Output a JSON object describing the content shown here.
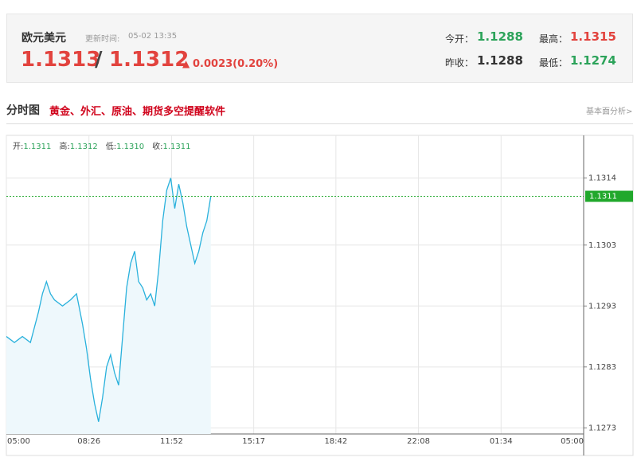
{
  "header": {
    "name": "欧元美元",
    "update_label": "更新时间:",
    "update_time": "05-02 13:35",
    "bid": "1.1313",
    "slash": "/",
    "ask": "1.1312",
    "change": "0.0023(0.20%)",
    "stats": [
      {
        "label": "今开：",
        "value": "1.1288"
      },
      {
        "label": "最高：",
        "value": "1.1315"
      },
      {
        "label": "昨收：",
        "value": "1.1288"
      },
      {
        "label": "最低：",
        "value": "1.1274"
      }
    ]
  },
  "section": {
    "title": "分时图",
    "promo": "黄金、外汇、原油、期货多空提醒软件",
    "link": "基本面分析>"
  },
  "chart_data": {
    "type": "line",
    "color": "#29b1dc",
    "area_color": "#eef8fc",
    "summary": [
      {
        "label": "开:",
        "value": "1.1311"
      },
      {
        "label": "高:",
        "value": "1.1312"
      },
      {
        "label": "低:",
        "value": "1.1310"
      },
      {
        "label": "收:",
        "value": "1.1311"
      }
    ],
    "x": [
      0,
      20,
      40,
      60,
      80,
      90,
      100,
      110,
      120,
      140,
      160,
      175,
      190,
      200,
      210,
      220,
      230,
      240,
      250,
      260,
      270,
      280,
      290,
      300,
      310,
      320,
      330,
      340,
      350,
      360,
      370,
      380,
      390,
      400,
      410,
      420,
      430,
      440,
      450,
      460,
      470,
      480,
      490,
      500,
      510
    ],
    "values": [
      1.1288,
      1.1287,
      1.1288,
      1.1287,
      1.1292,
      1.1295,
      1.1297,
      1.1295,
      1.1294,
      1.1293,
      1.1294,
      1.1295,
      1.129,
      1.1286,
      1.1281,
      1.1277,
      1.1274,
      1.1278,
      1.1283,
      1.1285,
      1.1282,
      1.128,
      1.1288,
      1.1296,
      1.13,
      1.1302,
      1.1297,
      1.1296,
      1.1294,
      1.1295,
      1.1293,
      1.1299,
      1.1307,
      1.1312,
      1.1314,
      1.1309,
      1.1313,
      1.131,
      1.1306,
      1.1303,
      1.13,
      1.1302,
      1.1305,
      1.1307,
      1.1311
    ],
    "last_price": 1.1311,
    "last_color": "#21a82c",
    "xlim": [
      0,
      1440
    ],
    "xticks": [
      {
        "value": 0,
        "label": "05:00"
      },
      {
        "value": 206,
        "label": "08:26"
      },
      {
        "value": 412,
        "label": "11:52"
      },
      {
        "value": 617,
        "label": "15:17"
      },
      {
        "value": 822,
        "label": "18:42"
      },
      {
        "value": 1028,
        "label": "22:08"
      },
      {
        "value": 1234,
        "label": "01:34"
      },
      {
        "value": 1440,
        "label": "05:00"
      }
    ],
    "ylim": [
      1.1272,
      1.1321
    ],
    "yticks": [
      1.1314,
      1.1303,
      1.1293,
      1.1283,
      1.1273
    ],
    "grid": true
  }
}
